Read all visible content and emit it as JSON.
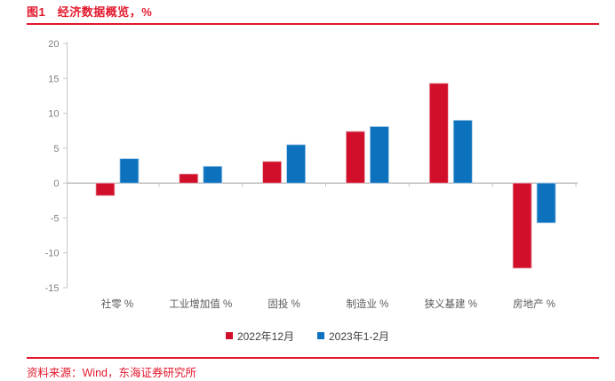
{
  "title": "图1　经济数据概览，%",
  "source": "资料来源：Wind，东海证券研究所",
  "colors": {
    "brand_red": "#e2182c",
    "axis_line": "#c6c6c6",
    "baseline": "#bbbbbb",
    "tick_label": "#808080",
    "category_label": "#5a5a5a",
    "legend_text": "#3f3f3f"
  },
  "legend": {
    "items": [
      {
        "label": "2022年12月",
        "color": "#d20f2b"
      },
      {
        "label": "2023年1-2月",
        "color": "#0d72be"
      }
    ]
  },
  "chart_data": {
    "type": "bar",
    "title": "图1 经济数据概览，%",
    "categories": [
      "社零 %",
      "工业增加值 %",
      "固投 %",
      "制造业 %",
      "狭义基建 %",
      "房地产 %"
    ],
    "series": [
      {
        "name": "2022年12月",
        "color": "#d20f2b",
        "edge": "#eab3bd",
        "values": [
          -1.8,
          1.3,
          3.1,
          7.4,
          14.3,
          -12.2
        ]
      },
      {
        "name": "2023年1-2月",
        "color": "#0d72be",
        "edge": "#a9cdea",
        "values": [
          3.5,
          2.4,
          5.5,
          8.1,
          9.0,
          -5.7
        ]
      }
    ],
    "xlabel": "",
    "ylabel": "",
    "ylim": [
      -15,
      20
    ],
    "yticks": [
      20,
      15,
      10,
      5,
      0,
      -5,
      -10,
      -15
    ],
    "grid": false,
    "legend_position": "bottom"
  }
}
